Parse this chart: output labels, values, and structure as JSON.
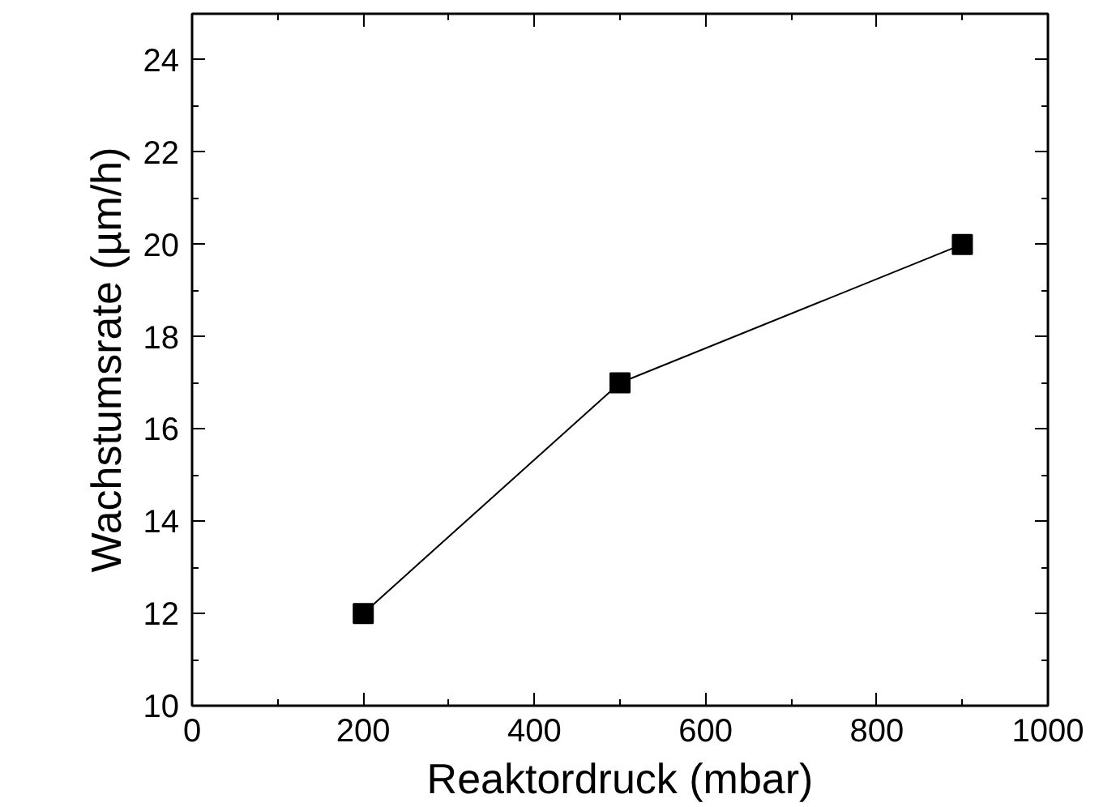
{
  "chart_data": {
    "type": "line",
    "xlabel": "Reaktordruck (mbar)",
    "ylabel": "Wachstumsrate (µm/h)",
    "x": [
      200,
      500,
      900
    ],
    "series": [
      {
        "color": "#000000",
        "values": [
          12,
          17,
          20
        ]
      }
    ],
    "xlim": [
      0,
      1000
    ],
    "xticks": [
      0,
      200,
      400,
      600,
      800,
      1000
    ],
    "ylim": [
      10,
      25
    ],
    "yticks": [
      10,
      12,
      14,
      16,
      18,
      20,
      22,
      24
    ],
    "marker": "square",
    "line_style": "solid",
    "grid": false
  }
}
